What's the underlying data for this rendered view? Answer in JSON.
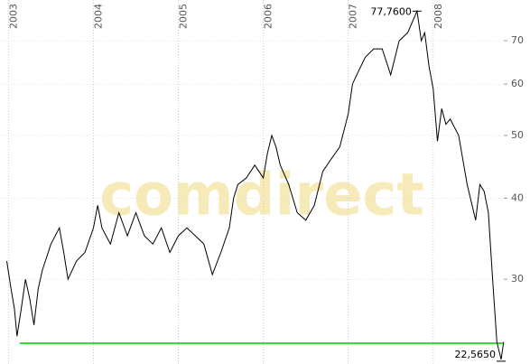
{
  "chart_data": {
    "type": "line",
    "watermark": "comdirect",
    "xlim": [
      2002.9,
      2009.14
    ],
    "xticks": [
      2003,
      2004,
      2005,
      2006,
      2007,
      2008
    ],
    "ylim": [
      22.2,
      80.9
    ],
    "yticks": [
      30,
      40,
      50,
      60,
      70
    ],
    "log_scale": true,
    "grid": true,
    "x": [
      2002.98,
      2003.03,
      2003.07,
      2003.1,
      2003.15,
      2003.2,
      2003.25,
      2003.3,
      2003.35,
      2003.4,
      2003.5,
      2003.6,
      2003.65,
      2003.7,
      2003.8,
      2003.9,
      2004.0,
      2004.05,
      2004.1,
      2004.2,
      2004.3,
      2004.4,
      2004.5,
      2004.6,
      2004.7,
      2004.8,
      2004.9,
      2005.0,
      2005.1,
      2005.2,
      2005.3,
      2005.4,
      2005.5,
      2005.6,
      2005.65,
      2005.7,
      2005.8,
      2005.9,
      2006.0,
      2006.05,
      2006.1,
      2006.15,
      2006.2,
      2006.3,
      2006.4,
      2006.5,
      2006.6,
      2006.7,
      2006.8,
      2006.9,
      2007.0,
      2007.05,
      2007.1,
      2007.2,
      2007.3,
      2007.4,
      2007.5,
      2007.6,
      2007.7,
      2007.81,
      2007.86,
      2007.9,
      2007.95,
      2008.0,
      2008.05,
      2008.1,
      2008.15,
      2008.2,
      2008.3,
      2008.4,
      2008.5,
      2008.55,
      2008.6,
      2008.65,
      2008.7,
      2008.75,
      2008.8,
      2008.83
    ],
    "series": [
      {
        "color": "#000000",
        "values": [
          32,
          29,
          27,
          24.5,
          27,
          30,
          28,
          25.5,
          29,
          31,
          34,
          36,
          33,
          30,
          32,
          33,
          36,
          39,
          36,
          34,
          38,
          35,
          38,
          35,
          34,
          36,
          33,
          35,
          36,
          35,
          34,
          30.5,
          33,
          36,
          40,
          42,
          43,
          45,
          43,
          47,
          50,
          48,
          45,
          42,
          38,
          37,
          39,
          44,
          46,
          48,
          54,
          60,
          62,
          66,
          68,
          68,
          62,
          70,
          72,
          77.76,
          70,
          72,
          64,
          59,
          49,
          55,
          52,
          53,
          50,
          42,
          37,
          42,
          41,
          38,
          30,
          24,
          22.565,
          24
        ]
      }
    ],
    "hline": {
      "value": 23.9,
      "color": "#33dd33"
    },
    "annotations": [
      {
        "x": 2007.81,
        "value": 77.76,
        "label": "77,7600"
      },
      {
        "x": 2008.8,
        "value": 22.565,
        "label": "22,5650"
      }
    ]
  }
}
